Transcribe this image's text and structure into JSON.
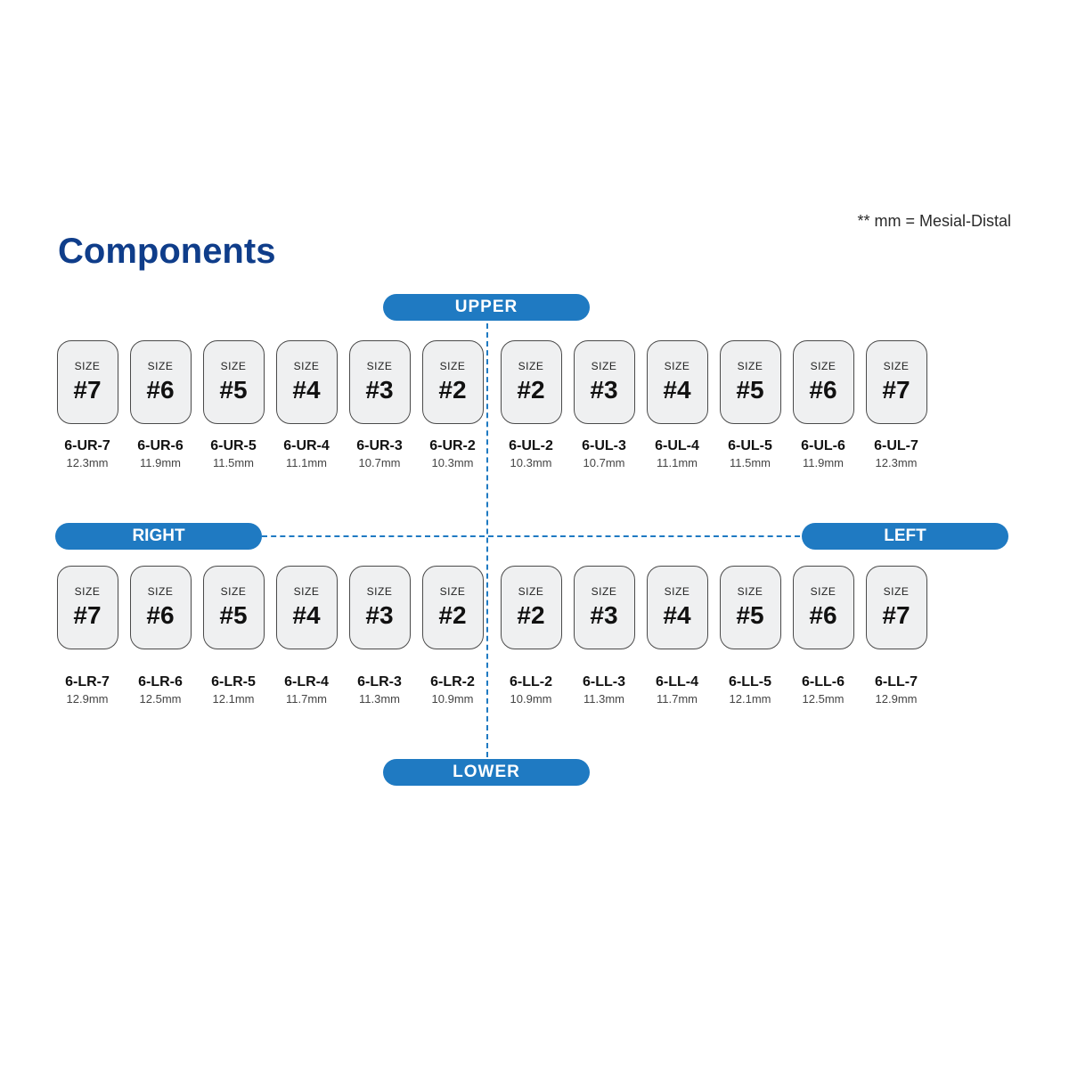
{
  "title": "Components",
  "footnote": "** mm = Mesial-Distal",
  "labels": {
    "upper": "UPPER",
    "lower": "LOWER",
    "right": "RIGHT",
    "left": "LEFT",
    "size_word": "SIZE"
  },
  "colors": {
    "accent": "#1f7ac2",
    "title": "#0f3d8a",
    "tile_bg": "#eff0f1",
    "tile_border": "#4a4a4a",
    "page_bg": "#ffffff"
  },
  "quadrants": {
    "upper_right": [
      {
        "size": "#7",
        "code": "6-UR-7",
        "mm": "12.3mm"
      },
      {
        "size": "#6",
        "code": "6-UR-6",
        "mm": "11.9mm"
      },
      {
        "size": "#5",
        "code": "6-UR-5",
        "mm": "11.5mm"
      },
      {
        "size": "#4",
        "code": "6-UR-4",
        "mm": "11.1mm"
      },
      {
        "size": "#3",
        "code": "6-UR-3",
        "mm": "10.7mm"
      },
      {
        "size": "#2",
        "code": "6-UR-2",
        "mm": "10.3mm"
      }
    ],
    "upper_left": [
      {
        "size": "#2",
        "code": "6-UL-2",
        "mm": "10.3mm"
      },
      {
        "size": "#3",
        "code": "6-UL-3",
        "mm": "10.7mm"
      },
      {
        "size": "#4",
        "code": "6-UL-4",
        "mm": "11.1mm"
      },
      {
        "size": "#5",
        "code": "6-UL-5",
        "mm": "11.5mm"
      },
      {
        "size": "#6",
        "code": "6-UL-6",
        "mm": "11.9mm"
      },
      {
        "size": "#7",
        "code": "6-UL-7",
        "mm": "12.3mm"
      }
    ],
    "lower_right": [
      {
        "size": "#7",
        "code": "6-LR-7",
        "mm": "12.9mm"
      },
      {
        "size": "#6",
        "code": "6-LR-6",
        "mm": "12.5mm"
      },
      {
        "size": "#5",
        "code": "6-LR-5",
        "mm": "12.1mm"
      },
      {
        "size": "#4",
        "code": "6-LR-4",
        "mm": "11.7mm"
      },
      {
        "size": "#3",
        "code": "6-LR-3",
        "mm": "11.3mm"
      },
      {
        "size": "#2",
        "code": "6-LR-2",
        "mm": "10.9mm"
      }
    ],
    "lower_left": [
      {
        "size": "#2",
        "code": "6-LL-2",
        "mm": "10.9mm"
      },
      {
        "size": "#3",
        "code": "6-LL-3",
        "mm": "11.3mm"
      },
      {
        "size": "#4",
        "code": "6-LL-4",
        "mm": "11.7mm"
      },
      {
        "size": "#5",
        "code": "6-LL-5",
        "mm": "12.1mm"
      },
      {
        "size": "#6",
        "code": "6-LL-6",
        "mm": "12.5mm"
      },
      {
        "size": "#7",
        "code": "6-LL-7",
        "mm": "12.9mm"
      }
    ]
  }
}
